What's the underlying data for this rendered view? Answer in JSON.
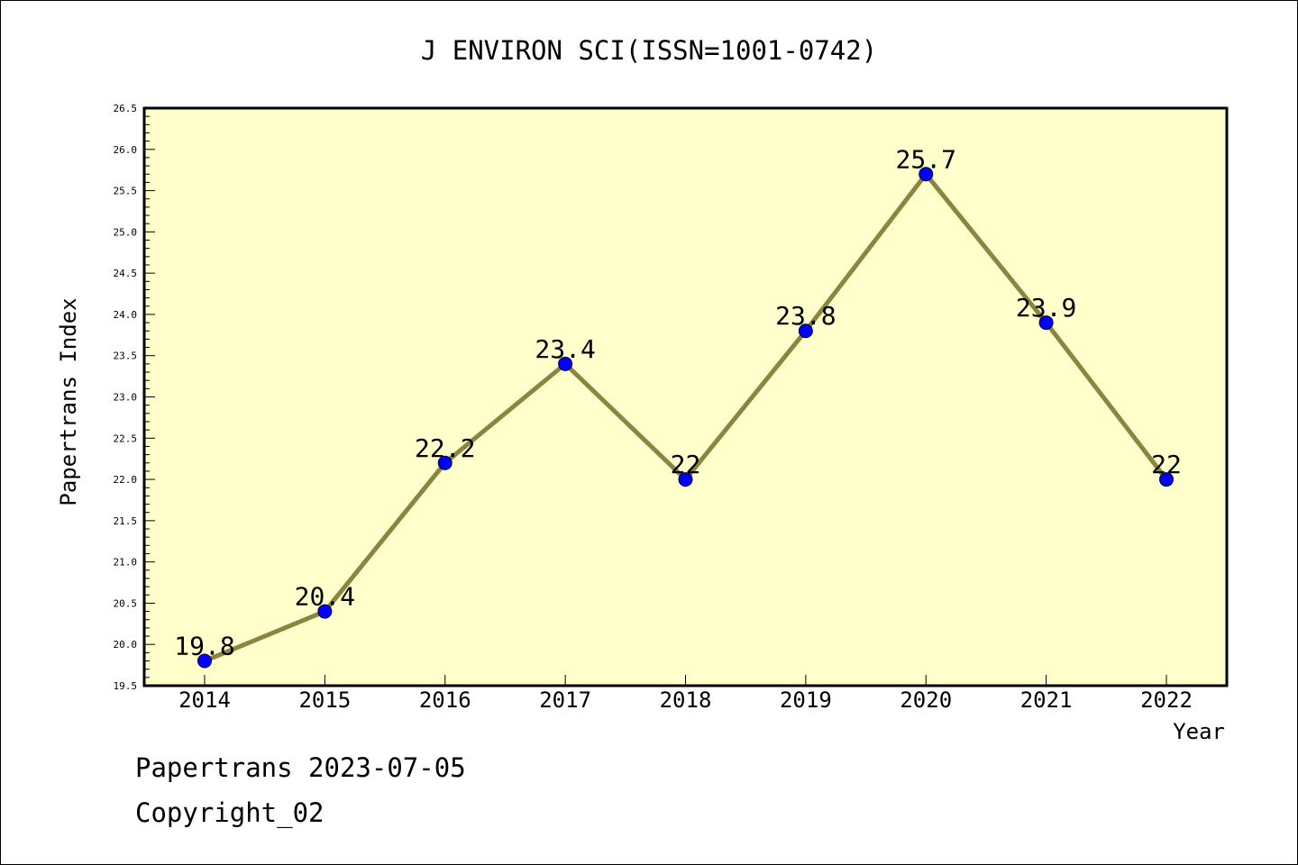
{
  "footer": {
    "line1": "Papertrans 2023-07-05",
    "line2": "Copyright_02"
  },
  "colors": {
    "background": "#ffffff",
    "plot_background": "#ffffcc",
    "line": "#8b8540",
    "marker": "#0000ff",
    "text": "#000000"
  },
  "chart_data": {
    "type": "line",
    "title": "J ENVIRON SCI(ISSN=1001-0742)",
    "xlabel": "Year",
    "ylabel": "Papertrans Index",
    "x": [
      "2014",
      "2015",
      "2016",
      "2017",
      "2018",
      "2019",
      "2020",
      "2021",
      "2022"
    ],
    "series": [
      {
        "values": [
          19.8,
          20.4,
          22.2,
          23.4,
          22.0,
          23.8,
          25.7,
          23.9,
          22.0
        ],
        "data_labels": [
          "19.8",
          "20.4",
          "22.2",
          "23.4",
          "22",
          "23.8",
          "25.7",
          "23.9",
          "22"
        ]
      }
    ],
    "ylim": [
      19.5,
      26.5
    ],
    "yticks": [
      "19.5",
      "20.0",
      "20.5",
      "21.0",
      "21.5",
      "22.0",
      "22.5",
      "23.0",
      "23.5",
      "24.0",
      "24.5",
      "25.0",
      "25.5",
      "26.0",
      "26.5"
    ],
    "grid": false,
    "legend": "none"
  }
}
